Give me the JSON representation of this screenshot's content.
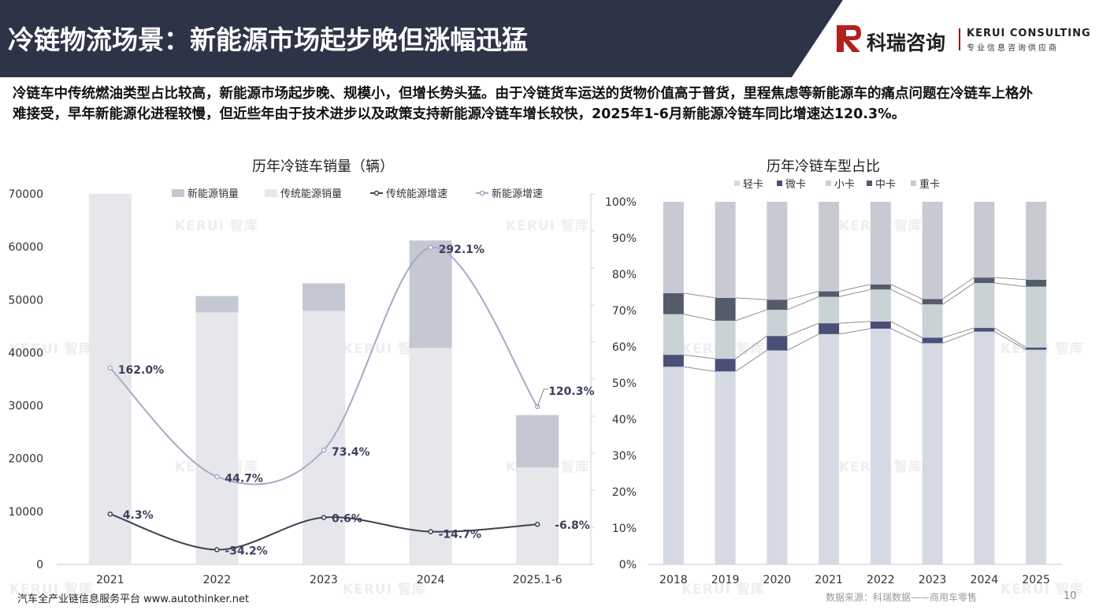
{
  "header": {
    "title": "冷链物流场景：新能源市场起步晚但涨幅迅猛",
    "brand_cn": "科瑞咨询",
    "brand_en": "KERUI CONSULTING",
    "brand_sub": "专业信息咨询供应商"
  },
  "intro": "冷链车中传统燃油类型占比较高，新能源市场起步晚、规模小，但增长势头猛。由于冷链货车运送的货物价值高于普货，里程焦虑等新能源车的痛点问题在冷链车上格外难接受，早年新能源化进程较慢，但近些年由于技术进步以及政策支持新能源冷链车增长较快，2025年1-6月新能源冷链车同比增速达120.3%。",
  "watermark": "KERUI 智库",
  "footer": {
    "left": "汽车全产业链信息服务平台 www.autothinker.net",
    "right": "数据来源：科瑞数据——商用车零售",
    "page": "10"
  },
  "colors": {
    "header_bg": "#2e3448",
    "new_energy_bar": "#c4c8d2",
    "traditional_bar": "#e6e7eb",
    "traditional_line": "#3d4150",
    "new_energy_line": "#a9a8c8",
    "light_truck": "#d5d9e4",
    "micro_truck": "#4a4f78",
    "small_truck": "#c9d3d6",
    "medium_truck": "#545c6c",
    "heavy_truck": "#c8cad3"
  },
  "chart_data": [
    {
      "type": "bar",
      "title": "历年冷链车销量（辆）",
      "categories": [
        "2021",
        "2022",
        "2023",
        "2024",
        "2025.1-6"
      ],
      "ylim": [
        0,
        70000
      ],
      "yticks": [
        "0",
        "10000",
        "20000",
        "30000",
        "40000",
        "50000",
        "60000",
        "70000"
      ],
      "stacked": true,
      "series": [
        {
          "name": "传统能源销量",
          "values": [
            70000,
            47600,
            47900,
            40900,
            18300
          ]
        },
        {
          "name": "新能源销量",
          "values": [
            0,
            3100,
            5200,
            20300,
            9900
          ]
        }
      ],
      "lines": [
        {
          "name": "传统能源增速",
          "values": [
            4.3,
            -34.2,
            0.6,
            -14.7,
            -6.8
          ],
          "labels": [
            "4.3%",
            "-34.2%",
            "0.6%",
            "-14.7%",
            "-6.8%"
          ]
        },
        {
          "name": "新能源增速",
          "values": [
            162.0,
            44.7,
            73.4,
            292.1,
            120.3
          ],
          "labels": [
            "162.0%",
            "44.7%",
            "73.4%",
            "292.1%",
            "120.3%"
          ]
        }
      ],
      "legend": [
        "新能源销量",
        "传统能源销量",
        "传统能源增速",
        "新能源增速"
      ],
      "legend_position": "top"
    },
    {
      "type": "bar",
      "title": "历年冷链车型占比",
      "categories": [
        "2018",
        "2019",
        "2020",
        "2021",
        "2022",
        "2023",
        "2024",
        "2025"
      ],
      "ylim": [
        0,
        100
      ],
      "yticks": [
        "0%",
        "10%",
        "20%",
        "30%",
        "40%",
        "50%",
        "60%",
        "70%",
        "80%",
        "90%",
        "100%"
      ],
      "stacked": true,
      "series": [
        {
          "name": "轻卡",
          "values": [
            54.5,
            53.2,
            59.0,
            63.5,
            65.0,
            61.0,
            64.2,
            59.2
          ]
        },
        {
          "name": "微卡",
          "values": [
            3.3,
            3.5,
            4.0,
            3.0,
            2.0,
            1.5,
            1.0,
            0.6
          ]
        },
        {
          "name": "小卡",
          "values": [
            11.2,
            10.5,
            7.2,
            7.3,
            8.8,
            9.2,
            12.4,
            16.8
          ]
        },
        {
          "name": "中卡",
          "values": [
            5.8,
            6.3,
            2.8,
            1.5,
            1.4,
            1.5,
            1.5,
            1.9
          ]
        },
        {
          "name": "重卡",
          "values": [
            25.2,
            26.5,
            27.0,
            24.7,
            22.8,
            26.8,
            20.9,
            21.5
          ]
        }
      ],
      "legend": [
        "轻卡",
        "微卡",
        "小卡",
        "中卡",
        "重卡"
      ],
      "legend_position": "top"
    }
  ]
}
